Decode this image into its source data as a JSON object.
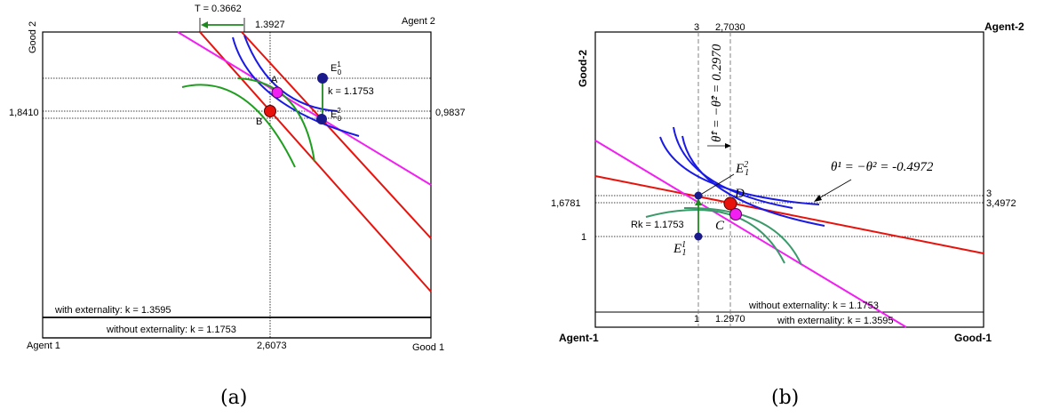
{
  "panel_a": {
    "agent1": "Agent 1",
    "agent2": "Agent 2",
    "good1": "Good 1",
    "good2": "Good 2",
    "top_t": "T = 0.3662",
    "top_val": "1.3927",
    "left_val": "1,8410",
    "right_val": "0,9837",
    "bottom_val": "2,6073",
    "point_a": "A",
    "point_b": "B",
    "e1_base": "E",
    "e1_sup": "1",
    "e1_sub": "0",
    "e2_base": "E",
    "e2_sup": "2",
    "e2_sub": "0",
    "k_label": "k = 1.1753",
    "with_ext": "with externality: k = 1.3595",
    "without_ext": "without externality: k = 1.1753",
    "caption": "(a)"
  },
  "panel_b": {
    "agent1": "Agent-1",
    "agent2": "Agent-2",
    "good1": "Good-1",
    "good2": "Good-2",
    "top_3": "3",
    "top_val": "2,7030",
    "left_16781": "1,6781",
    "left_1": "1",
    "right_3": "3",
    "right_34972": "3,4972",
    "bottom_1": "1",
    "bottom_12970": "1.2970",
    "theta_eq": "θ¹ = −θ² = -0.4972",
    "theta_hat": "θ̂¹ = −θ̂² = 0.2970",
    "rk": "Rk = 1.1753",
    "point_c": "C",
    "point_d": "D",
    "e1_base": "E",
    "e1_sup": "1",
    "e1_sub": "1",
    "e2_base": "E",
    "e2_sup": "2",
    "e2_sub": "1",
    "without_ext": "without externality: k = 1.1753",
    "with_ext": "with externality: k = 1.3595",
    "caption": "(b)"
  },
  "colors": {
    "red_line": "#e8120c",
    "magenta_line": "#f21ff2",
    "blue_curve": "#1a1ae6",
    "green_curve": "#1e9e1e",
    "point_a": "#f21ff2",
    "point_b": "#e8120c",
    "endowment": "#1a1a8c"
  }
}
